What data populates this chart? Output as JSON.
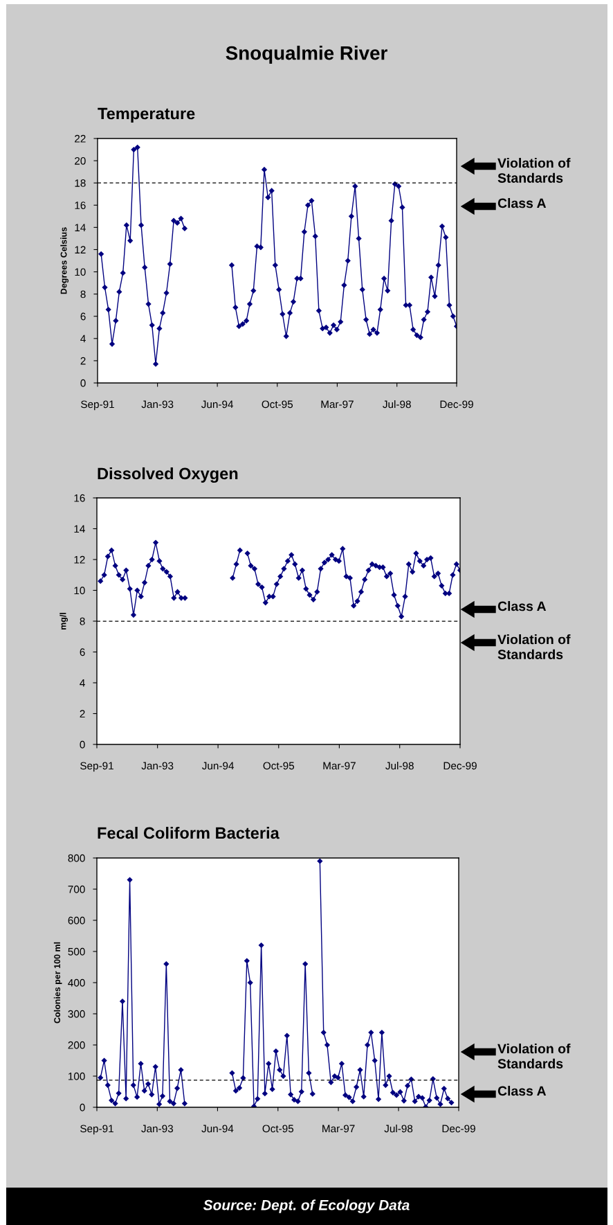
{
  "chart_data": [
    {
      "type": "line",
      "title": "Snoqualmie River",
      "subtitle": "Temperature",
      "ylabel": "Degrees Celsius",
      "marker": "diamond",
      "line_style": "solid",
      "x": [
        "1991-10",
        "1991-11",
        "1991-12",
        "1992-01",
        "1992-02",
        "1992-03",
        "1992-04",
        "1992-05",
        "1992-06",
        "1992-07",
        "1992-08",
        "1992-09",
        "1992-10",
        "1992-11",
        "1992-12",
        "1993-01",
        "1993-02",
        "1993-03",
        "1993-04",
        "1993-05",
        "1993-06",
        "1993-07",
        "1993-08",
        "1993-09",
        "1993-10",
        "1993-11",
        "1993-12",
        "1994-01",
        "1994-02",
        "1994-03",
        "1994-04",
        "1994-05",
        "1994-06",
        "1994-07",
        "1994-08",
        "1994-09",
        "1994-10",
        "1994-11",
        "1994-12",
        "1995-01",
        "1995-02",
        "1995-03",
        "1995-04",
        "1995-05",
        "1995-06",
        "1995-07",
        "1995-08",
        "1995-09",
        "1995-10",
        "1995-11",
        "1995-12",
        "1996-01",
        "1996-02",
        "1996-03",
        "1996-04",
        "1996-05",
        "1996-06",
        "1996-07",
        "1996-08",
        "1996-09",
        "1996-10",
        "1996-11",
        "1996-12",
        "1997-01",
        "1997-02",
        "1997-03",
        "1997-04",
        "1997-05",
        "1997-06",
        "1997-07",
        "1997-08",
        "1997-09",
        "1997-10",
        "1997-11",
        "1997-12",
        "1998-01",
        "1998-02",
        "1998-03",
        "1998-04",
        "1998-05",
        "1998-06",
        "1998-07",
        "1998-08",
        "1998-09",
        "1998-10",
        "1998-11",
        "1998-12",
        "1999-01",
        "1999-02",
        "1999-03",
        "1999-04",
        "1999-05",
        "1999-06",
        "1999-07",
        "1999-08",
        "1999-09",
        "1999-10",
        "1999-11",
        "1999-12"
      ],
      "series": [
        {
          "color": "#000080",
          "values": [
            11.6,
            8.6,
            6.6,
            3.5,
            5.6,
            8.2,
            9.9,
            14.2,
            12.8,
            21.0,
            21.2,
            14.2,
            10.4,
            7.1,
            5.2,
            1.7,
            4.9,
            6.3,
            8.1,
            10.7,
            14.6,
            14.4,
            14.8,
            13.9,
            null,
            null,
            null,
            null,
            null,
            null,
            null,
            null,
            null,
            null,
            null,
            null,
            10.6,
            6.8,
            5.1,
            5.3,
            5.6,
            7.1,
            8.3,
            12.3,
            12.2,
            19.2,
            16.7,
            17.3,
            10.6,
            8.4,
            6.2,
            4.2,
            6.3,
            7.3,
            9.4,
            9.4,
            13.6,
            16.0,
            16.4,
            13.2,
            6.5,
            4.9,
            5.0,
            4.5,
            5.2,
            4.8,
            5.5,
            8.8,
            11.0,
            15.0,
            17.7,
            13.0,
            8.4,
            5.7,
            4.4,
            4.8,
            4.5,
            6.6,
            9.4,
            8.3,
            14.6,
            17.9,
            17.7,
            15.8,
            7.0,
            7.0,
            4.8,
            4.3,
            4.1,
            5.7,
            6.4,
            9.5,
            7.8,
            10.6,
            14.1,
            13.1,
            7.0,
            6.0,
            5.1
          ]
        }
      ],
      "xlim": [
        "1991-09-01",
        "1999-12-01"
      ],
      "xticks": [
        {
          "value": "1991-09-01",
          "label": "Sep-91"
        },
        {
          "value": "1993-01-16",
          "label": "Jan-93"
        },
        {
          "value": "1994-06-02",
          "label": "Jun-94"
        },
        {
          "value": "1995-10-18",
          "label": "Oct-95"
        },
        {
          "value": "1997-03-04",
          "label": "Mar-97"
        },
        {
          "value": "1998-07-18",
          "label": "Jul-98"
        },
        {
          "value": "1999-12-01",
          "label": "Dec-99"
        }
      ],
      "ylim": [
        0,
        22
      ],
      "yticks": [
        0,
        2,
        4,
        6,
        8,
        10,
        12,
        14,
        16,
        18,
        20,
        22
      ],
      "ref_lines": [
        {
          "axis": "y",
          "value": 18,
          "color": "#000000",
          "line_style": "dashed"
        }
      ],
      "annotations": [
        "Violation of Standards",
        "Class A"
      ]
    },
    {
      "type": "line",
      "title": "Dissolved Oxygen",
      "ylabel": "mg/l",
      "marker": "diamond",
      "line_style": "solid",
      "x": [
        "1991-10",
        "1991-11",
        "1991-12",
        "1992-01",
        "1992-02",
        "1992-03",
        "1992-04",
        "1992-05",
        "1992-06",
        "1992-07",
        "1992-08",
        "1992-09",
        "1992-10",
        "1992-11",
        "1992-12",
        "1993-01",
        "1993-02",
        "1993-03",
        "1993-04",
        "1993-05",
        "1993-06",
        "1993-07",
        "1993-08",
        "1993-09",
        "1993-10",
        "1993-11",
        "1993-12",
        "1994-01",
        "1994-02",
        "1994-03",
        "1994-04",
        "1994-05",
        "1994-06",
        "1994-07",
        "1994-08",
        "1994-09",
        "1994-10",
        "1994-11",
        "1994-12",
        "1995-01",
        "1995-02",
        "1995-03",
        "1995-04",
        "1995-05",
        "1995-06",
        "1995-07",
        "1995-08",
        "1995-09",
        "1995-10",
        "1995-11",
        "1995-12",
        "1996-01",
        "1996-02",
        "1996-03",
        "1996-04",
        "1996-05",
        "1996-06",
        "1996-07",
        "1996-08",
        "1996-09",
        "1996-10",
        "1996-11",
        "1996-12",
        "1997-01",
        "1997-02",
        "1997-03",
        "1997-04",
        "1997-05",
        "1997-06",
        "1997-07",
        "1997-08",
        "1997-09",
        "1997-10",
        "1997-11",
        "1997-12",
        "1998-01",
        "1998-02",
        "1998-03",
        "1998-04",
        "1998-05",
        "1998-06",
        "1998-07",
        "1998-08",
        "1998-09",
        "1998-10",
        "1998-11",
        "1998-12",
        "1999-01",
        "1999-02",
        "1999-03",
        "1999-04",
        "1999-05",
        "1999-06",
        "1999-07",
        "1999-08",
        "1999-09",
        "1999-10",
        "1999-11",
        "1999-12"
      ],
      "series": [
        {
          "color": "#000080",
          "values": [
            10.6,
            11.0,
            12.2,
            12.6,
            11.6,
            11.0,
            10.7,
            11.3,
            10.1,
            8.4,
            10.0,
            9.6,
            10.5,
            11.6,
            12.0,
            13.1,
            11.9,
            11.4,
            11.2,
            10.9,
            9.5,
            9.9,
            9.5,
            9.5,
            null,
            null,
            null,
            null,
            null,
            null,
            null,
            null,
            null,
            null,
            null,
            null,
            10.8,
            11.7,
            12.6,
            null,
            12.4,
            11.6,
            11.4,
            10.4,
            10.2,
            9.2,
            9.6,
            9.6,
            10.4,
            10.9,
            11.4,
            11.9,
            12.3,
            11.7,
            10.8,
            11.3,
            10.1,
            9.7,
            9.4,
            9.9,
            11.4,
            11.8,
            12.0,
            12.3,
            12.0,
            11.9,
            12.7,
            10.9,
            10.8,
            9.0,
            9.3,
            9.9,
            10.7,
            11.3,
            11.7,
            11.6,
            11.5,
            11.5,
            10.9,
            11.1,
            9.7,
            9.0,
            8.3,
            9.6,
            11.7,
            11.2,
            12.4,
            11.9,
            11.6,
            12.0,
            12.1,
            10.9,
            11.1,
            10.3,
            9.8,
            9.8,
            11.0,
            11.7,
            11.3
          ]
        }
      ],
      "xlim": [
        "1991-09-01",
        "1999-12-01"
      ],
      "xticks": [
        {
          "value": "1991-09-01",
          "label": "Sep-91"
        },
        {
          "value": "1993-01-16",
          "label": "Jan-93"
        },
        {
          "value": "1994-06-02",
          "label": "Jun-94"
        },
        {
          "value": "1995-10-18",
          "label": "Oct-95"
        },
        {
          "value": "1997-03-04",
          "label": "Mar-97"
        },
        {
          "value": "1998-07-18",
          "label": "Jul-98"
        },
        {
          "value": "1999-12-01",
          "label": "Dec-99"
        }
      ],
      "ylim": [
        0,
        16
      ],
      "yticks": [
        0,
        2,
        4,
        6,
        8,
        10,
        12,
        14,
        16
      ],
      "ref_lines": [
        {
          "axis": "y",
          "value": 8,
          "color": "#000000",
          "line_style": "dashed"
        }
      ],
      "annotations": [
        "Class A",
        "Violation of Standards"
      ]
    },
    {
      "type": "line",
      "title": "Fecal Coliform Bacteria",
      "ylabel": "Colonies per 100 ml",
      "marker": "diamond",
      "line_style": "solid",
      "x": [
        "1991-10",
        "1991-11",
        "1991-12",
        "1992-01",
        "1992-02",
        "1992-03",
        "1992-04",
        "1992-05",
        "1992-06",
        "1992-07",
        "1992-08",
        "1992-09",
        "1992-10",
        "1992-11",
        "1992-12",
        "1993-01",
        "1993-02",
        "1993-03",
        "1993-04",
        "1993-05",
        "1993-06",
        "1993-07",
        "1993-08",
        "1993-09",
        "1993-10",
        "1993-11",
        "1993-12",
        "1994-01",
        "1994-02",
        "1994-03",
        "1994-04",
        "1994-05",
        "1994-06",
        "1994-07",
        "1994-08",
        "1994-09",
        "1994-10",
        "1994-11",
        "1994-12",
        "1995-01",
        "1995-02",
        "1995-03",
        "1995-04",
        "1995-05",
        "1995-06",
        "1995-07",
        "1995-08",
        "1995-09",
        "1995-10",
        "1995-11",
        "1995-12",
        "1996-01",
        "1996-02",
        "1996-03",
        "1996-04",
        "1996-05",
        "1996-06",
        "1996-07",
        "1996-08",
        "1996-09",
        "1996-10",
        "1996-11",
        "1996-12",
        "1997-01",
        "1997-02",
        "1997-03",
        "1997-04",
        "1997-05",
        "1997-06",
        "1997-07",
        "1997-08",
        "1997-09",
        "1997-10",
        "1997-11",
        "1997-12",
        "1998-01",
        "1998-02",
        "1998-03",
        "1998-04",
        "1998-05",
        "1998-06",
        "1998-07",
        "1998-08",
        "1998-09",
        "1998-10",
        "1998-11",
        "1998-12",
        "1999-01",
        "1999-02",
        "1999-03",
        "1999-04",
        "1999-05",
        "1999-06",
        "1999-07",
        "1999-08",
        "1999-09",
        "1999-10"
      ],
      "series": [
        {
          "color": "#000080",
          "values": [
            95,
            150,
            71,
            22,
            12,
            45,
            340,
            28,
            730,
            71,
            33,
            140,
            53,
            75,
            41,
            130,
            10,
            36,
            460,
            19,
            12,
            61,
            120,
            12,
            null,
            null,
            null,
            null,
            null,
            null,
            null,
            null,
            null,
            null,
            null,
            null,
            110,
            53,
            62,
            94,
            470,
            400,
            3,
            27,
            520,
            44,
            140,
            58,
            180,
            120,
            100,
            230,
            41,
            24,
            19,
            50,
            460,
            110,
            43,
            null,
            790,
            240,
            200,
            80,
            100,
            95,
            140,
            39,
            32,
            19,
            65,
            120,
            34,
            200,
            240,
            150,
            26,
            240,
            71,
            100,
            47,
            39,
            49,
            21,
            69,
            90,
            19,
            34,
            30,
            1,
            22,
            91,
            30,
            10,
            60,
            28,
            15
          ]
        }
      ],
      "xlim": [
        "1991-09-01",
        "1999-12-01"
      ],
      "xticks": [
        {
          "value": "1991-09-01",
          "label": "Sep-91"
        },
        {
          "value": "1993-01-16",
          "label": "Jan-93"
        },
        {
          "value": "1994-06-02",
          "label": "Jun-94"
        },
        {
          "value": "1995-10-18",
          "label": "Oct-95"
        },
        {
          "value": "1997-03-04",
          "label": "Mar-97"
        },
        {
          "value": "1998-07-18",
          "label": "Jul-98"
        },
        {
          "value": "1999-12-01",
          "label": "Dec-99"
        }
      ],
      "ylim": [
        0,
        800
      ],
      "yticks": [
        0,
        100,
        200,
        300,
        400,
        500,
        600,
        700,
        800
      ],
      "ref_lines": [
        {
          "axis": "y",
          "value": 87,
          "color": "#000000",
          "line_style": "dashed"
        }
      ],
      "annotations": [
        "Violation of Standards",
        "Class A",
        "Source: Dept. of Ecology Data"
      ]
    }
  ]
}
